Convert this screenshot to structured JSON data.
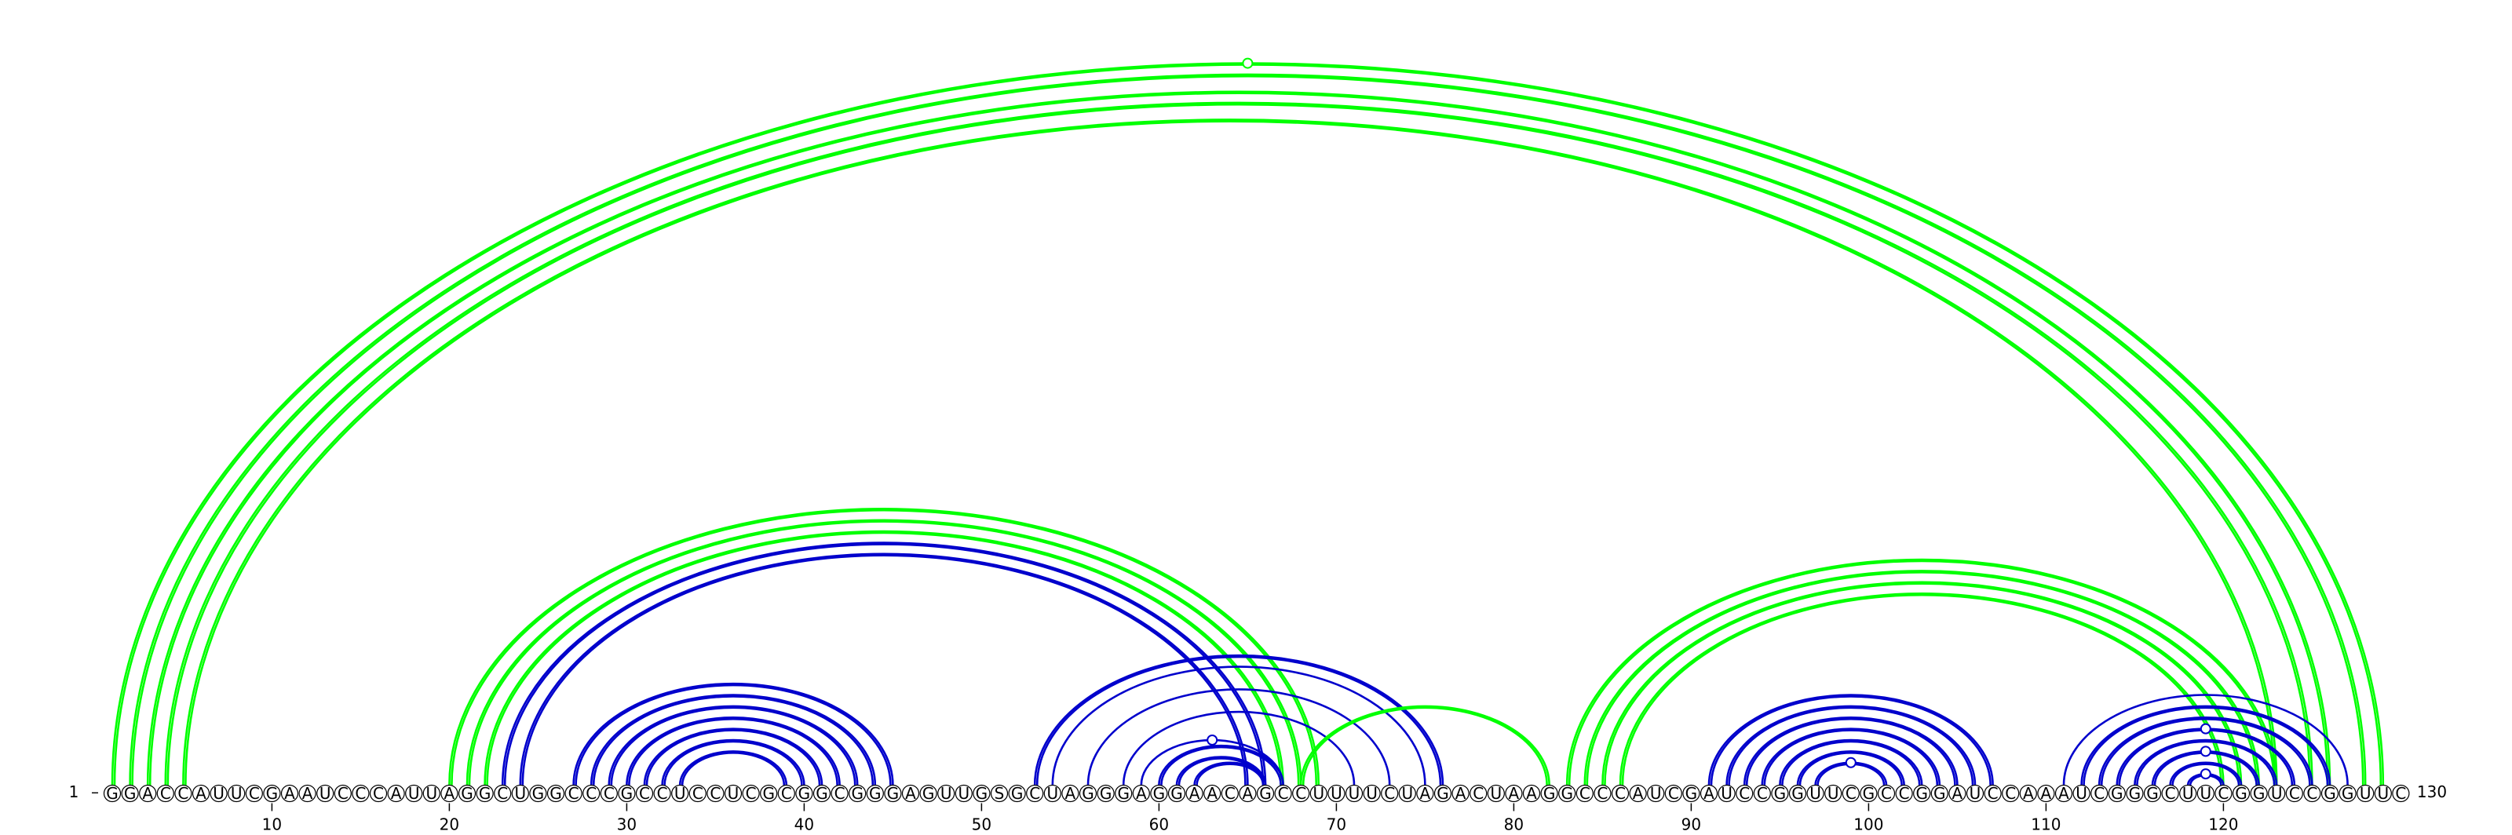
{
  "diagram": {
    "sequence": "GGACCAUUCGAAUCCCAUUAGGCUGGCCCGCCUCCUCGCGGCGGGAGUUGSGCUAGGGAGGAACAGCCUUUUCUAGACUAAGGCCCAUCGAUCCGGUUCGCCGGAUCCAAAUCGGGCUUCGGUCCGGUUC",
    "start_label": "1",
    "end_label": "130",
    "ticks": [
      "10",
      "20",
      "30",
      "40",
      "50",
      "60",
      "70",
      "80",
      "90",
      "100",
      "110",
      "120"
    ],
    "colors": {
      "green": "#00ff00",
      "blue": "#0000cc",
      "circle_stroke": "#000000",
      "circle_fill": "#ffffff"
    },
    "arc_groups": [
      {
        "color": "green",
        "i": 1,
        "j": 129,
        "count": 2
      },
      {
        "color": "green",
        "i": 2,
        "j": 128,
        "count": 2
      },
      {
        "color": "green",
        "i": 3,
        "j": 126,
        "count": 2
      },
      {
        "color": "green",
        "i": 4,
        "j": 125,
        "count": 2
      },
      {
        "color": "green",
        "i": 5,
        "j": 123,
        "count": 2
      },
      {
        "color": "green",
        "i": 20,
        "j": 69,
        "count": 2
      },
      {
        "color": "green",
        "i": 21,
        "j": 68,
        "count": 2
      },
      {
        "color": "green",
        "i": 22,
        "j": 67,
        "count": 2
      },
      {
        "color": "blue",
        "i": 23,
        "j": 66,
        "count": 2
      },
      {
        "color": "blue",
        "i": 24,
        "j": 65,
        "count": 2
      },
      {
        "color": "blue",
        "i": 27,
        "j": 45,
        "count": 2
      },
      {
        "color": "blue",
        "i": 28,
        "j": 44,
        "count": 2
      },
      {
        "color": "blue",
        "i": 29,
        "j": 43,
        "count": 2
      },
      {
        "color": "blue",
        "i": 30,
        "j": 42,
        "count": 2
      },
      {
        "color": "blue",
        "i": 31,
        "j": 41,
        "count": 2
      },
      {
        "color": "blue",
        "i": 32,
        "j": 40,
        "count": 2
      },
      {
        "color": "blue",
        "i": 33,
        "j": 39,
        "count": 2
      },
      {
        "color": "blue",
        "i": 53,
        "j": 76,
        "count": 2
      },
      {
        "color": "blue",
        "i": 54,
        "j": 75,
        "count": 1
      },
      {
        "color": "blue",
        "i": 56,
        "j": 73,
        "count": 1
      },
      {
        "color": "blue",
        "i": 58,
        "j": 71,
        "count": 1
      },
      {
        "color": "blue",
        "i": 59,
        "j": 67,
        "count": 1
      },
      {
        "color": "blue",
        "i": 60,
        "j": 67,
        "count": 2
      },
      {
        "color": "blue",
        "i": 61,
        "j": 66,
        "count": 2
      },
      {
        "color": "blue",
        "i": 62,
        "j": 66,
        "count": 2
      },
      {
        "color": "green",
        "i": 68,
        "j": 82,
        "count": 2
      },
      {
        "color": "green",
        "i": 83,
        "j": 123,
        "count": 2
      },
      {
        "color": "green",
        "i": 84,
        "j": 122,
        "count": 2
      },
      {
        "color": "green",
        "i": 85,
        "j": 121,
        "count": 2
      },
      {
        "color": "green",
        "i": 86,
        "j": 120,
        "count": 2
      },
      {
        "color": "blue",
        "i": 91,
        "j": 107,
        "count": 2
      },
      {
        "color": "blue",
        "i": 92,
        "j": 106,
        "count": 2
      },
      {
        "color": "blue",
        "i": 93,
        "j": 105,
        "count": 2
      },
      {
        "color": "blue",
        "i": 94,
        "j": 104,
        "count": 2
      },
      {
        "color": "blue",
        "i": 95,
        "j": 103,
        "count": 2
      },
      {
        "color": "blue",
        "i": 96,
        "j": 102,
        "count": 2
      },
      {
        "color": "blue",
        "i": 97,
        "j": 101,
        "count": 2
      },
      {
        "color": "blue",
        "i": 111,
        "j": 127,
        "count": 1
      },
      {
        "color": "blue",
        "i": 112,
        "j": 126,
        "count": 2
      },
      {
        "color": "blue",
        "i": 113,
        "j": 125,
        "count": 2
      },
      {
        "color": "blue",
        "i": 114,
        "j": 124,
        "count": 2
      },
      {
        "color": "blue",
        "i": 115,
        "j": 123,
        "count": 2
      },
      {
        "color": "blue",
        "i": 116,
        "j": 122,
        "count": 2
      },
      {
        "color": "blue",
        "i": 117,
        "j": 121,
        "count": 2
      },
      {
        "color": "blue",
        "i": 118,
        "j": 120,
        "count": 2
      }
    ],
    "markers": [
      {
        "color": "green",
        "i": 1,
        "j": 129
      },
      {
        "color": "blue",
        "i": 59,
        "j": 67
      },
      {
        "color": "blue",
        "i": 97,
        "j": 101
      },
      {
        "color": "blue",
        "i": 114,
        "j": 124
      },
      {
        "color": "blue",
        "i": 116,
        "j": 122
      },
      {
        "color": "blue",
        "i": 118,
        "j": 120
      }
    ]
  }
}
